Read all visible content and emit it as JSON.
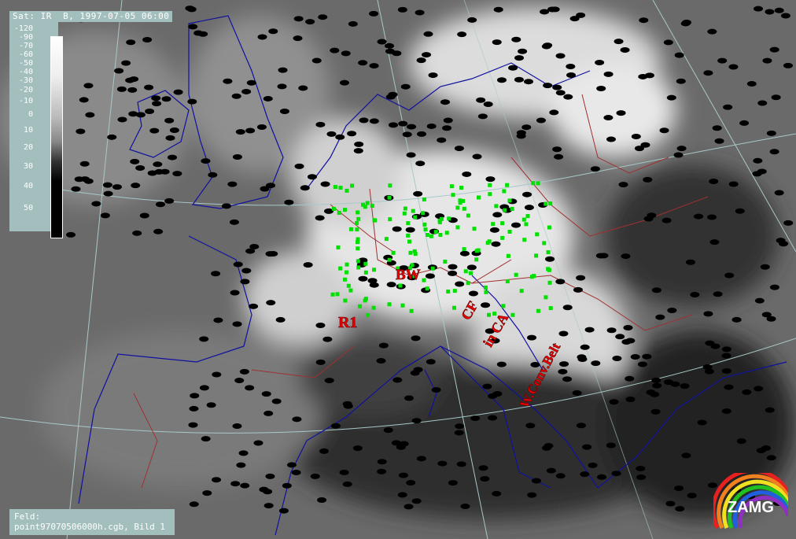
{
  "header": {
    "title": "Sat: IR  B, 1997-07-05 06:00"
  },
  "legend": {
    "ticks": [
      "-120",
      "-90",
      "-70",
      "-60",
      "-50",
      "-40",
      "-30",
      "-20",
      "-10",
      "0",
      "10",
      "20",
      "30",
      "40",
      "50"
    ]
  },
  "footer": {
    "line1": "Feld:",
    "line2": "point97070506000h.cgb, Bild 1"
  },
  "annotations": {
    "r1": "R1",
    "bw": "BW",
    "cf": "CF",
    "in_ca": "in CA",
    "conv_belt": "W.Conv.Belt"
  },
  "logo": {
    "text": "ZAMG"
  },
  "colors": {
    "coastline": "#1010a0",
    "borders": "#a03030",
    "graticule": "#a8c8c8",
    "stations": "#000000",
    "green_obs": "#00e000",
    "symbols": "#ff2020",
    "panel": "#a3bfbd"
  }
}
